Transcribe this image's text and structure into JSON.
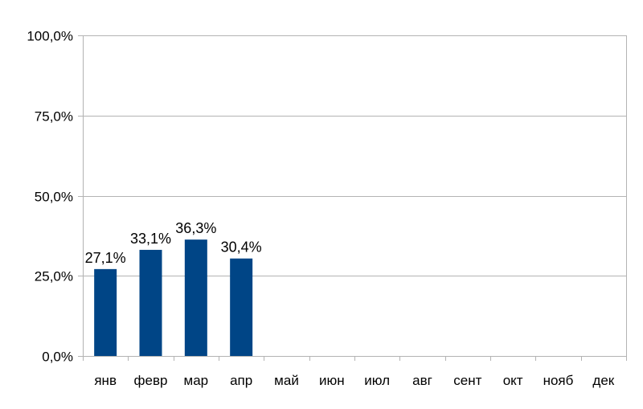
{
  "chart_data": {
    "type": "bar",
    "categories": [
      "янв",
      "февр",
      "мар",
      "апр",
      "май",
      "июн",
      "июл",
      "авг",
      "сент",
      "окт",
      "нояб",
      "дек"
    ],
    "values": [
      27.1,
      33.1,
      36.3,
      30.4,
      null,
      null,
      null,
      null,
      null,
      null,
      null,
      null
    ],
    "data_labels": [
      "27,1%",
      "33,1%",
      "36,3%",
      "30,4%",
      "",
      "",
      "",
      "",
      "",
      "",
      "",
      ""
    ],
    "yticks": [
      0,
      25,
      50,
      75,
      100
    ],
    "ytick_labels": [
      "0,0%",
      "25,0%",
      "50,0%",
      "75,0%",
      "100,0%"
    ],
    "ylim": [
      0,
      100
    ],
    "title": "",
    "xlabel": "",
    "ylabel": "",
    "grid": true,
    "legend": "none",
    "bar_color": "#004586",
    "grid_color": "#b3b3b3"
  }
}
